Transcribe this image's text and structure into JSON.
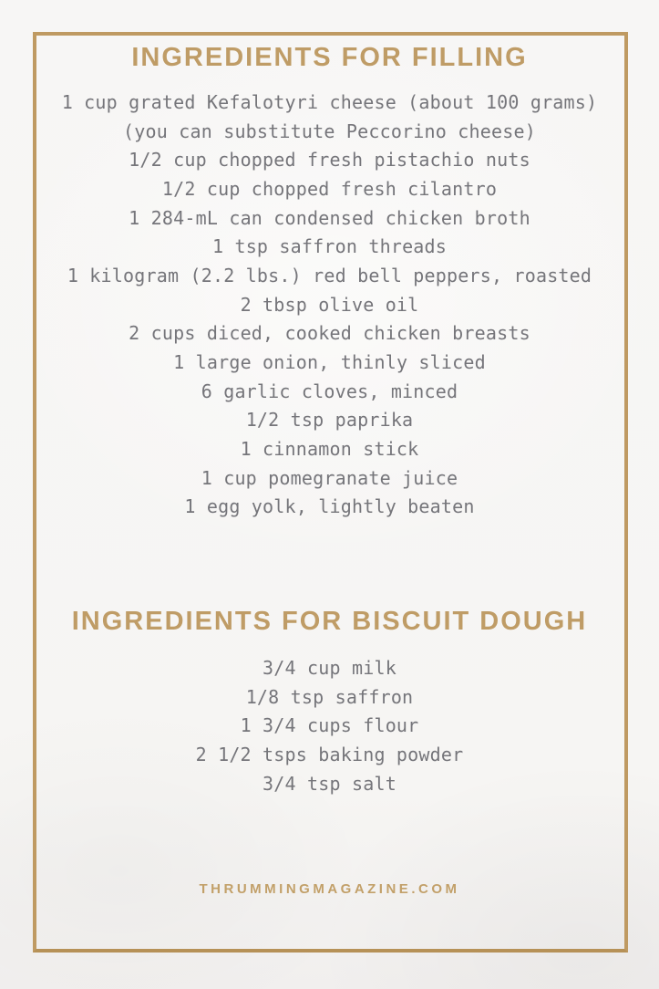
{
  "page": {
    "type": "recipe-ingredients-card",
    "background_color": "#f6f5f3",
    "accent_color": "#bf9c66",
    "border_color": "#bf9a62",
    "body_text_color": "#75757a",
    "footer": "THRUMMINGMAGAZINE.COM"
  },
  "sections": [
    {
      "title": "INGREDIENTS FOR FILLING",
      "items": [
        "1 cup grated Kefalotyri cheese (about 100 grams)",
        "(you can substitute Peccorino cheese)",
        "1/2 cup chopped fresh pistachio nuts",
        "1/2 cup chopped fresh cilantro",
        "1 284-mL can condensed chicken broth",
        "1 tsp saffron threads",
        "1 kilogram (2.2 lbs.) red bell peppers, roasted",
        "2 tbsp olive oil",
        "2 cups diced, cooked chicken breasts",
        "1 large onion, thinly sliced",
        "6 garlic cloves, minced",
        "1/2 tsp paprika",
        "1 cinnamon stick",
        "1 cup pomegranate juice",
        "1 egg yolk, lightly beaten"
      ]
    },
    {
      "title": "INGREDIENTS FOR BISCUIT DOUGH",
      "items": [
        "3/4 cup milk",
        "1/8 tsp saffron",
        "1 3/4 cups flour",
        "2 1/2 tsps baking powder",
        "3/4 tsp salt"
      ]
    }
  ]
}
